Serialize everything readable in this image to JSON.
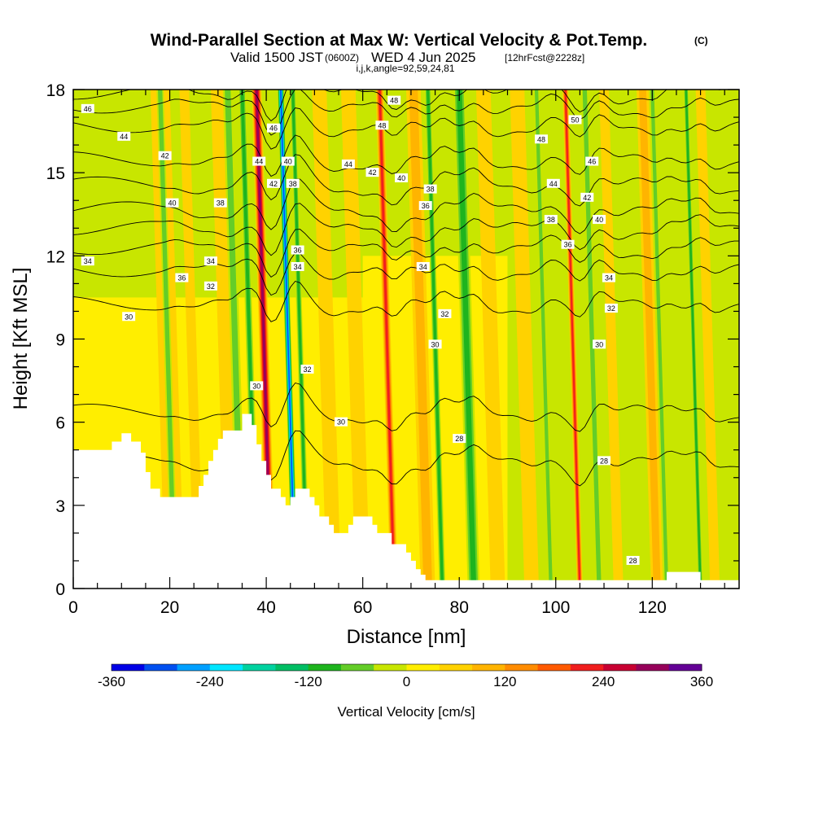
{
  "chart_data": {
    "type": "heatmap",
    "title": "Wind-Parallel Section at Max W: Vertical Velocity & Pot.Temp.",
    "title_mark": "(C)",
    "subtitle_main_a": "Valid 1500 JST",
    "subtitle_utc": "(0600Z)",
    "subtitle_main_b": "WED 4 Jun 2025",
    "subtitle_fcst": "[12hrFcst@2228z]",
    "subtitle_line2": "i,j,k,angle=92,59,24,81",
    "xlabel": "Distance [nm]",
    "ylabel": "Height [Kft MSL]",
    "xlim": [
      0,
      138
    ],
    "ylim": [
      0,
      18
    ],
    "x_ticks": [
      0,
      20,
      40,
      60,
      80,
      100,
      120
    ],
    "x_tick_labels": [
      "0",
      "20",
      "40",
      "60",
      "80",
      "100",
      "120"
    ],
    "y_ticks": [
      0,
      3,
      6,
      9,
      12,
      15,
      18
    ],
    "y_tick_labels": [
      "0",
      "3",
      "6",
      "9",
      "12",
      "15",
      "18"
    ],
    "colorbar": {
      "label": "Vertical Velocity [cm/s]",
      "range": [
        -360,
        360
      ],
      "tick_labels": [
        "-360",
        "-240",
        "-120",
        "0",
        "120",
        "240",
        "360"
      ],
      "tick_values": [
        -360,
        -240,
        -120,
        0,
        120,
        240,
        360
      ],
      "colors": [
        "#0000e6",
        "#0050f0",
        "#00a0ff",
        "#00e6ff",
        "#00d2a0",
        "#00be64",
        "#1eb41e",
        "#64cd28",
        "#c8e600",
        "#ffee00",
        "#ffd200",
        "#ffb400",
        "#ff8c00",
        "#ff5a00",
        "#f01e1e",
        "#c80032",
        "#96005a",
        "#640096"
      ]
    },
    "updrafts": [
      {
        "x": 21,
        "w": 4,
        "v": 60
      },
      {
        "x": 26,
        "w": 2,
        "v": 40
      },
      {
        "x": 33,
        "w": 3,
        "v": 60
      },
      {
        "x": 41,
        "w": 2,
        "v": 290
      },
      {
        "x": 54,
        "w": 3,
        "v": 70
      },
      {
        "x": 60,
        "w": 3,
        "v": 60
      },
      {
        "x": 66.5,
        "w": 1.6,
        "v": 200
      },
      {
        "x": 73.5,
        "w": 3,
        "v": 90
      },
      {
        "x": 88,
        "w": 3,
        "v": 50
      },
      {
        "x": 95,
        "w": 3,
        "v": 50
      },
      {
        "x": 105,
        "w": 1.2,
        "v": 220
      },
      {
        "x": 113,
        "w": 2,
        "v": 60
      },
      {
        "x": 121,
        "w": 2.5,
        "v": 80
      },
      {
        "x": 133,
        "w": 2,
        "v": 60
      }
    ],
    "downdrafts": [
      {
        "x": 21,
        "w": 1.5,
        "v": -100
      },
      {
        "x": 35,
        "w": 2,
        "v": -110
      },
      {
        "x": 38,
        "w": 1.5,
        "v": -130
      },
      {
        "x": 46,
        "w": 1.3,
        "v": -330
      },
      {
        "x": 48.5,
        "w": 1.2,
        "v": -140
      },
      {
        "x": 76.5,
        "w": 1.3,
        "v": -120
      },
      {
        "x": 83,
        "w": 2.5,
        "v": -150
      },
      {
        "x": 99,
        "w": 1.2,
        "v": -90
      },
      {
        "x": 109,
        "w": 1.5,
        "v": -100
      },
      {
        "x": 123,
        "w": 1.2,
        "v": -90
      },
      {
        "x": 130,
        "w": 1,
        "v": -120
      }
    ],
    "terrain_kft": [
      [
        0,
        5.0
      ],
      [
        7,
        5.0
      ],
      [
        8,
        5.3
      ],
      [
        10,
        5.6
      ],
      [
        12,
        5.3
      ],
      [
        14,
        4.9
      ],
      [
        15,
        4.2
      ],
      [
        16,
        3.6
      ],
      [
        18,
        3.3
      ],
      [
        21,
        3.3
      ],
      [
        25,
        3.3
      ],
      [
        26,
        3.7
      ],
      [
        27,
        4.1
      ],
      [
        28,
        4.6
      ],
      [
        29,
        5.0
      ],
      [
        30,
        5.4
      ],
      [
        31,
        5.7
      ],
      [
        33,
        5.7
      ],
      [
        35,
        6.3
      ],
      [
        37,
        5.9
      ],
      [
        38,
        5.2
      ],
      [
        39,
        4.6
      ],
      [
        40,
        4.1
      ],
      [
        41,
        3.6
      ],
      [
        42,
        3.6
      ],
      [
        43,
        3.3
      ],
      [
        44,
        3.0
      ],
      [
        45,
        3.3
      ],
      [
        46,
        3.6
      ],
      [
        48,
        3.6
      ],
      [
        49,
        3.3
      ],
      [
        50,
        3.0
      ],
      [
        51,
        2.6
      ],
      [
        53,
        2.3
      ],
      [
        54,
        2.0
      ],
      [
        56,
        2.0
      ],
      [
        57,
        2.3
      ],
      [
        58,
        2.6
      ],
      [
        61,
        2.6
      ],
      [
        62,
        2.3
      ],
      [
        63,
        2.0
      ],
      [
        65,
        2.0
      ],
      [
        66,
        1.6
      ],
      [
        68,
        1.6
      ],
      [
        69,
        1.3
      ],
      [
        70,
        1.0
      ],
      [
        71,
        0.7
      ],
      [
        72,
        0.5
      ],
      [
        73,
        0.3
      ],
      [
        75,
        0.3
      ],
      [
        122,
        0.3
      ],
      [
        123,
        0.6
      ],
      [
        129,
        0.6
      ],
      [
        130,
        0.3
      ],
      [
        138,
        0.3
      ]
    ],
    "theta_contours": [
      {
        "value": 28,
        "h": 4.6
      },
      {
        "value": 30,
        "h": 6.4
      },
      {
        "value": 32,
        "h": 10.3
      },
      {
        "value": 34,
        "h": 11.5
      },
      {
        "value": 36,
        "h": 12.3
      },
      {
        "value": 38,
        "h": 13.0
      },
      {
        "value": 40,
        "h": 13.7
      },
      {
        "value": 42,
        "h": 14.6
      },
      {
        "value": 44,
        "h": 15.5
      },
      {
        "value": 46,
        "h": 16.7
      },
      {
        "value": 48,
        "h": 17.4
      },
      {
        "value": 50,
        "h": 17.9
      }
    ],
    "contour_labels": [
      {
        "text": "46",
        "x": 3,
        "y": 17.3
      },
      {
        "text": "44",
        "x": 10.5,
        "y": 16.3
      },
      {
        "text": "42",
        "x": 19,
        "y": 15.6
      },
      {
        "text": "40",
        "x": 20.5,
        "y": 13.9
      },
      {
        "text": "38",
        "x": 30.5,
        "y": 13.9
      },
      {
        "text": "34",
        "x": 3,
        "y": 11.8
      },
      {
        "text": "34",
        "x": 28.5,
        "y": 11.8
      },
      {
        "text": "36",
        "x": 22.5,
        "y": 11.2
      },
      {
        "text": "32",
        "x": 28.5,
        "y": 10.9
      },
      {
        "text": "30",
        "x": 11.5,
        "y": 9.8
      },
      {
        "text": "46",
        "x": 41.5,
        "y": 16.6
      },
      {
        "text": "44",
        "x": 38.5,
        "y": 15.4
      },
      {
        "text": "40",
        "x": 44.5,
        "y": 15.4
      },
      {
        "text": "42",
        "x": 41.5,
        "y": 14.6
      },
      {
        "text": "38",
        "x": 45.5,
        "y": 14.6
      },
      {
        "text": "36",
        "x": 46.5,
        "y": 12.2
      },
      {
        "text": "34",
        "x": 46.5,
        "y": 11.6
      },
      {
        "text": "32",
        "x": 48.5,
        "y": 7.9
      },
      {
        "text": "30",
        "x": 38,
        "y": 7.3
      },
      {
        "text": "30",
        "x": 55.5,
        "y": 6.0
      },
      {
        "text": "48",
        "x": 66.5,
        "y": 17.6
      },
      {
        "text": "48",
        "x": 64,
        "y": 16.7
      },
      {
        "text": "44",
        "x": 57,
        "y": 15.3
      },
      {
        "text": "42",
        "x": 62,
        "y": 15.0
      },
      {
        "text": "40",
        "x": 68,
        "y": 14.8
      },
      {
        "text": "38",
        "x": 74,
        "y": 14.4
      },
      {
        "text": "36",
        "x": 73,
        "y": 13.8
      },
      {
        "text": "34",
        "x": 72.5,
        "y": 11.6
      },
      {
        "text": "32",
        "x": 77,
        "y": 9.9
      },
      {
        "text": "30",
        "x": 75,
        "y": 8.8
      },
      {
        "text": "28",
        "x": 80,
        "y": 5.4
      },
      {
        "text": "50",
        "x": 104,
        "y": 16.9
      },
      {
        "text": "48",
        "x": 97,
        "y": 16.2
      },
      {
        "text": "46",
        "x": 107.5,
        "y": 15.4
      },
      {
        "text": "44",
        "x": 99.5,
        "y": 14.6
      },
      {
        "text": "42",
        "x": 106.5,
        "y": 14.1
      },
      {
        "text": "40",
        "x": 109,
        "y": 13.3
      },
      {
        "text": "38",
        "x": 99,
        "y": 13.3
      },
      {
        "text": "36",
        "x": 102.5,
        "y": 12.4
      },
      {
        "text": "34",
        "x": 111,
        "y": 11.2
      },
      {
        "text": "32",
        "x": 111.5,
        "y": 10.1
      },
      {
        "text": "30",
        "x": 109,
        "y": 8.8
      },
      {
        "text": "28",
        "x": 110,
        "y": 4.6
      },
      {
        "text": "28",
        "x": 116,
        "y": 1.0
      }
    ]
  }
}
